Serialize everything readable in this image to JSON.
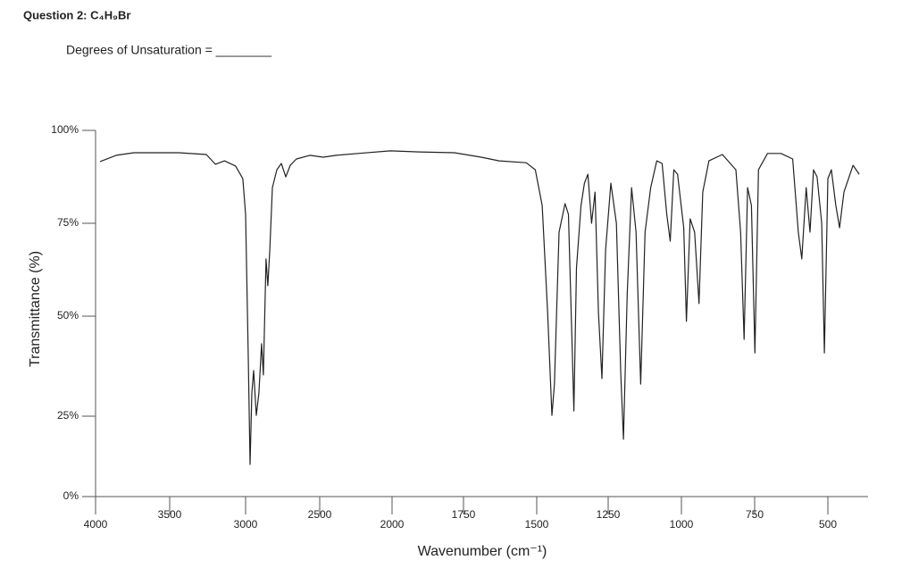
{
  "chart_data": {
    "type": "line",
    "title": "Question 2: C₄H₉Br",
    "subtitle": "Degrees of Unsaturation = ________",
    "x_label": "Wavenumber (cm⁻¹)",
    "y_label": "Transmittance (%)",
    "xlim": [
      4000,
      368
    ],
    "xticks": [
      4000,
      3500,
      3000,
      2500,
      2000,
      1750,
      1500,
      1250,
      1000,
      750,
      500
    ],
    "ylim": [
      0,
      100
    ],
    "yticks": [
      {
        "value": 0,
        "label": "0%"
      },
      {
        "value": 25,
        "label": "25%"
      },
      {
        "value": 50,
        "label": "50%"
      },
      {
        "value": 75,
        "label": "75%"
      },
      {
        "value": 100,
        "label": "100%"
      }
    ],
    "grid": false,
    "series": [
      {
        "name": "C₄H₉Br",
        "color": "#222222",
        "x": [
          3970,
          3861,
          3741,
          3440,
          3259,
          3199,
          3139,
          3066,
          3018,
          3000,
          2982,
          2970,
          2958,
          2946,
          2928,
          2910,
          2892,
          2880,
          2862,
          2850,
          2837,
          2819,
          2789,
          2759,
          2729,
          2699,
          2657,
          2566,
          2476,
          2386,
          2235,
          2012,
          1905,
          1782,
          1690,
          1628,
          1536,
          1505,
          1481,
          1462,
          1447,
          1438,
          1422,
          1401,
          1389,
          1376,
          1370,
          1361,
          1345,
          1333,
          1321,
          1308,
          1296,
          1284,
          1272,
          1259,
          1241,
          1222,
          1207,
          1198,
          1185,
          1170,
          1155,
          1139,
          1124,
          1105,
          1084,
          1066,
          1050,
          1038,
          1026,
          1013,
          1001,
          992,
          983,
          970,
          955,
          940,
          927,
          906,
          860,
          814,
          798,
          786,
          774,
          761,
          749,
          737,
          706,
          660,
          620,
          601,
          589,
          574,
          561,
          549,
          537,
          521,
          512,
          500,
          488,
          473,
          460,
          445,
          414,
          393
        ],
        "values": [
          91.6,
          93.3,
          94,
          94,
          93.5,
          90.9,
          91.8,
          90.4,
          87,
          77.4,
          39.7,
          10,
          30.8,
          36.4,
          25.2,
          30.8,
          43.1,
          35.3,
          65.4,
          58.2,
          67.8,
          84.6,
          89.4,
          91.1,
          87.5,
          90.6,
          92.3,
          93.3,
          92.8,
          93.3,
          93.8,
          94.5,
          94.2,
          94,
          92.8,
          91.8,
          91.3,
          89.4,
          79.8,
          51,
          25.2,
          33,
          72.6,
          80.3,
          77.4,
          42,
          26.3,
          63,
          79.8,
          85.8,
          88.2,
          75,
          83.4,
          51,
          34.4,
          67.8,
          85.8,
          75,
          35.7,
          17.8,
          55.8,
          84.6,
          72.6,
          33,
          72.6,
          84.6,
          91.8,
          91.1,
          77.4,
          70.2,
          89.4,
          88.2,
          79.8,
          73.8,
          48.7,
          76.2,
          72.6,
          53.4,
          83.4,
          91.8,
          93.5,
          89.4,
          72.6,
          44.2,
          84.6,
          79.8,
          40.8,
          89.4,
          93.8,
          93.8,
          92.3,
          72.6,
          65.4,
          84.6,
          72.6,
          89.4,
          87.5,
          75,
          40.8,
          87,
          89.4,
          79.8,
          73.8,
          83.4,
          90.6,
          88.2
        ]
      }
    ]
  }
}
